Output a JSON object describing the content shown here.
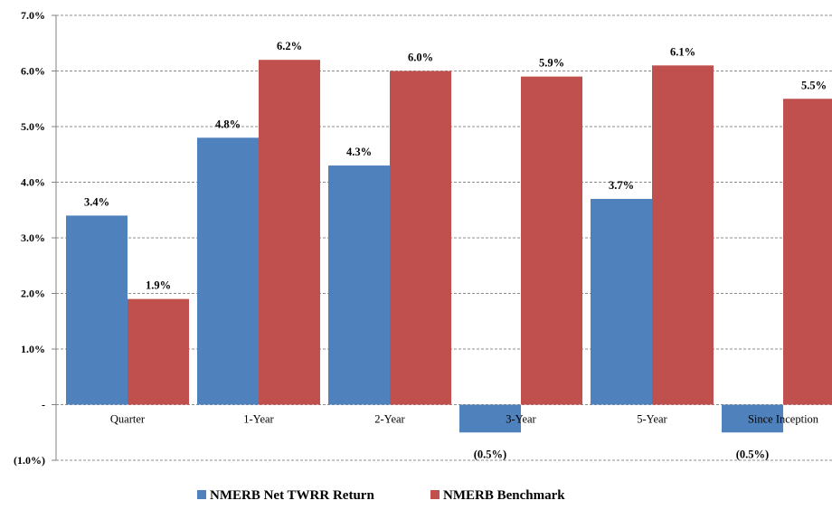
{
  "chart_data": {
    "type": "bar",
    "categories": [
      "Quarter",
      "1-Year",
      "2-Year",
      "3-Year",
      "5-Year",
      "Since Inception"
    ],
    "series": [
      {
        "name": "NMERB Net TWRR Return",
        "color": "#4f81bd",
        "values": [
          3.4,
          4.8,
          4.3,
          -0.5,
          3.7,
          -0.5
        ],
        "labels": [
          "3.4%",
          "4.8%",
          "4.3%",
          "(0.5%)",
          "3.7%",
          "(0.5%)"
        ]
      },
      {
        "name": "NMERB Benchmark",
        "color": "#c0504d",
        "values": [
          1.9,
          6.2,
          6.0,
          5.9,
          6.1,
          5.5
        ],
        "labels": [
          "1.9%",
          "6.2%",
          "6.0%",
          "5.9%",
          "6.1%",
          "5.5%"
        ]
      }
    ],
    "ylim": [
      -1.0,
      7.0
    ],
    "yticks": [
      -1.0,
      0.0,
      1.0,
      2.0,
      3.0,
      4.0,
      5.0,
      6.0,
      7.0
    ],
    "ytick_labels": [
      "(1.0%)",
      "-",
      "1.0%",
      "2.0%",
      "3.0%",
      "4.0%",
      "5.0%",
      "6.0%",
      "7.0%"
    ],
    "grid": true,
    "legend_position": "bottom-center"
  }
}
